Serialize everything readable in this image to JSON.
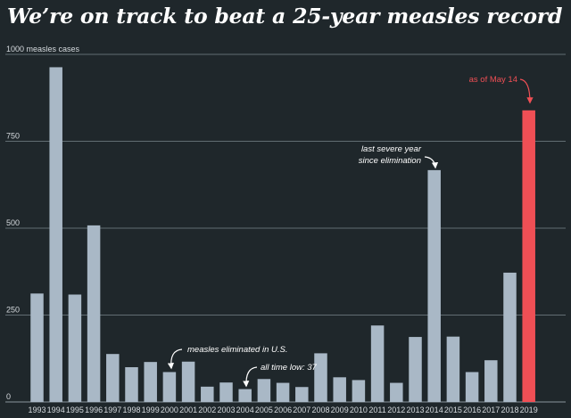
{
  "chart_data": {
    "type": "bar",
    "title": "We’re on track to beat a 25-year measles record",
    "ylabel": "measles cases",
    "ylim": [
      0,
      1000
    ],
    "yticks": [
      "0",
      "250",
      "500",
      "750",
      "1000 measles cases"
    ],
    "ytick_values": [
      0,
      250,
      500,
      750,
      1000
    ],
    "categories": [
      "1993",
      "1994",
      "1995",
      "1996",
      "1997",
      "1998",
      "1999",
      "2000",
      "2001",
      "2002",
      "2003",
      "2004",
      "2005",
      "2006",
      "2007",
      "2008",
      "2009",
      "2010",
      "2011",
      "2012",
      "2013",
      "2014",
      "2015",
      "2016",
      "2017",
      "2018",
      "2019"
    ],
    "values": [
      312,
      963,
      309,
      508,
      138,
      100,
      115,
      86,
      116,
      44,
      56,
      37,
      66,
      55,
      43,
      140,
      71,
      63,
      220,
      55,
      187,
      667,
      188,
      86,
      120,
      372,
      839
    ],
    "highlight_index": 26,
    "colors": {
      "bar": "#a9b8c6",
      "highlight": "#ef4f55",
      "grid": "#8a969d",
      "background": "#1f272b",
      "text": "#ffffff"
    },
    "annotations": [
      {
        "lines": [
          "measles eliminated in U.S."
        ],
        "index": 7
      },
      {
        "lines": [
          "all time low: 37"
        ],
        "index": 11
      },
      {
        "lines": [
          "last severe year",
          "since elimination"
        ],
        "index": 21
      },
      {
        "lines": [
          "as of May 14"
        ],
        "index": 26
      }
    ]
  }
}
